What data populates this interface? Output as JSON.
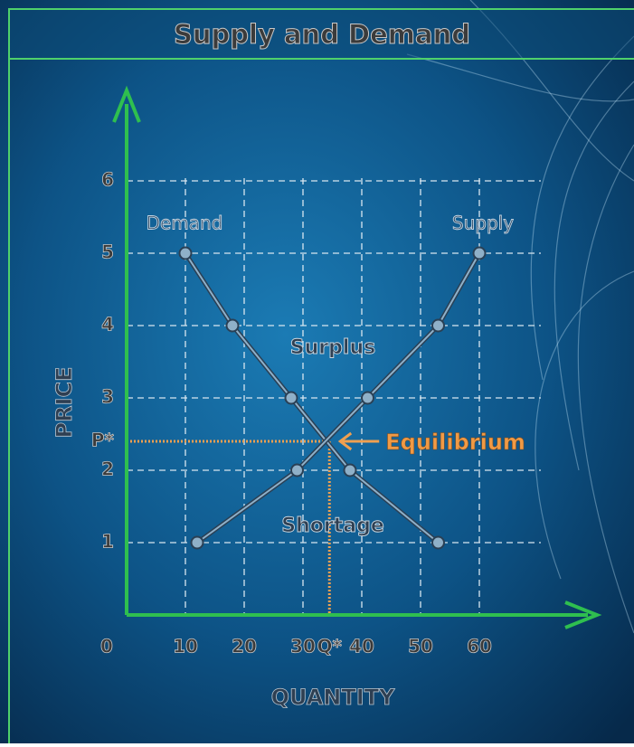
{
  "chart_data": {
    "type": "line",
    "title": "Supply and Demand",
    "x_label": "QUANTITY",
    "y_label": "PRICE",
    "xlim": [
      0,
      80
    ],
    "ylim": [
      0,
      7.25
    ],
    "xticks": [
      0,
      10,
      20,
      30,
      {
        "value": 34.5,
        "label": "Q*"
      },
      40,
      50,
      60
    ],
    "yticks": [
      1,
      2,
      {
        "value": 2.4,
        "label": "P*"
      },
      3,
      4,
      5,
      6
    ],
    "grid": true,
    "series": [
      {
        "name": "Demand",
        "color": "#8fb0c8",
        "x": [
          10,
          18,
          28,
          38,
          53
        ],
        "values": [
          5,
          4,
          3,
          2,
          1
        ]
      },
      {
        "name": "Supply",
        "color": "#8fb0c8",
        "x": [
          12,
          29,
          41,
          53,
          60
        ],
        "values": [
          1,
          2,
          3,
          4,
          5
        ]
      }
    ],
    "annotations": [
      "Surplus",
      "Shortage",
      "Equilibrium"
    ]
  }
}
